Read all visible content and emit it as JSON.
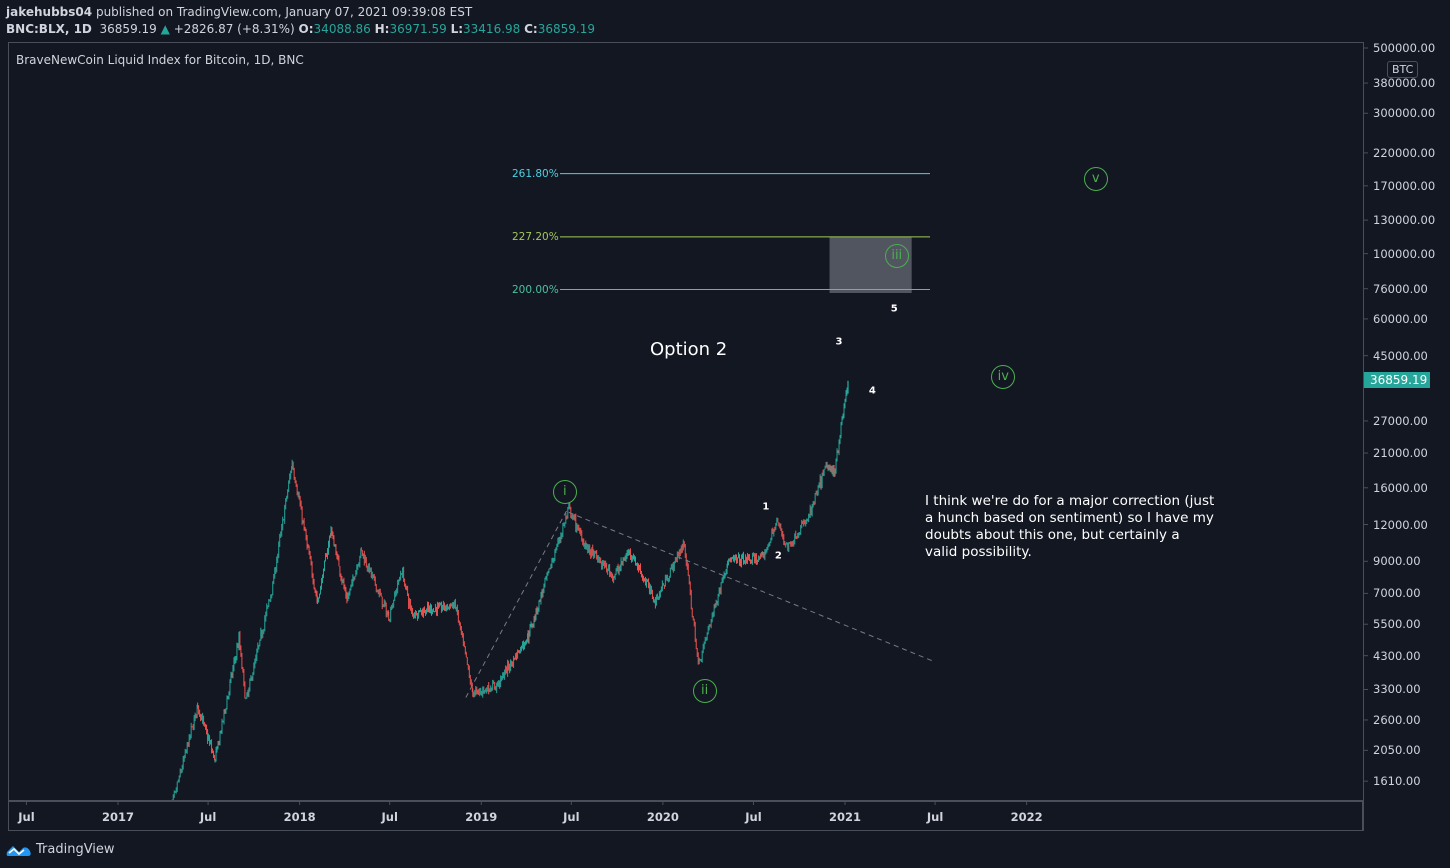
{
  "header": {
    "author": "jakehubbs04",
    "published": "published on TradingView.com, January 07, 2021 09:39:08 EST",
    "symbol": "BNC:BLX, 1D",
    "price": "36859.19",
    "change": "+2826.87 (+8.31%)",
    "o_label": "O:",
    "o": "34088.86",
    "h_label": "H:",
    "h": "36971.59",
    "l_label": "L:",
    "l": "33416.98",
    "c_label": "C:",
    "c": "36859.19"
  },
  "footer": {
    "brand": "TradingView"
  },
  "colors": {
    "bg": "#131722",
    "up": "#26a69a",
    "down": "#ef5350",
    "wave": "#4caf50"
  },
  "chart_data": {
    "type": "candlestick",
    "title": "BraveNewCoin Liquid Index for Bitcoin, 1D, BNC",
    "currency": "BTC",
    "yscale": "log",
    "ylim": [
      1450,
      560000
    ],
    "last_price": "36859.19",
    "y_ticks": [
      "500000.00",
      "380000.00",
      "300000.00",
      "220000.00",
      "170000.00",
      "130000.00",
      "100000.00",
      "76000.00",
      "60000.00",
      "45000.00",
      "27000.00",
      "21000.00",
      "16000.00",
      "12000.00",
      "9000.00",
      "7000.00",
      "5500.00",
      "4300.00",
      "3300.00",
      "2600.00",
      "2050.00",
      "1610.00"
    ],
    "x_ticks": [
      {
        "label": "Jul",
        "date": "2016-07-01"
      },
      {
        "label": "2017",
        "date": "2017-01-01"
      },
      {
        "label": "Jul",
        "date": "2017-07-01"
      },
      {
        "label": "2018",
        "date": "2018-01-01"
      },
      {
        "label": "Jul",
        "date": "2018-07-01"
      },
      {
        "label": "2019",
        "date": "2019-01-01"
      },
      {
        "label": "Jul",
        "date": "2019-07-01"
      },
      {
        "label": "2020",
        "date": "2020-01-01"
      },
      {
        "label": "Jul",
        "date": "2020-07-01"
      },
      {
        "label": "2021",
        "date": "2021-01-01"
      },
      {
        "label": "Jul",
        "date": "2021-07-01"
      },
      {
        "label": "2022",
        "date": "2022-01-01"
      }
    ],
    "price_path": [
      [
        "2017-04-10",
        1150
      ],
      [
        "2017-06-10",
        2900
      ],
      [
        "2017-07-15",
        1900
      ],
      [
        "2017-09-01",
        4900
      ],
      [
        "2017-09-15",
        3000
      ],
      [
        "2017-11-08",
        7500
      ],
      [
        "2017-12-17",
        19500
      ],
      [
        "2018-02-06",
        6500
      ],
      [
        "2018-03-05",
        11500
      ],
      [
        "2018-04-06",
        6600
      ],
      [
        "2018-05-05",
        9800
      ],
      [
        "2018-06-29",
        5800
      ],
      [
        "2018-07-25",
        8400
      ],
      [
        "2018-08-14",
        6000
      ],
      [
        "2018-11-10",
        6400
      ],
      [
        "2018-12-15",
        3200
      ],
      [
        "2019-02-01",
        3400
      ],
      [
        "2019-04-05",
        5000
      ],
      [
        "2019-06-26",
        13500
      ],
      [
        "2019-08-01",
        10000
      ],
      [
        "2019-09-25",
        8000
      ],
      [
        "2019-10-26",
        9800
      ],
      [
        "2019-12-17",
        6600
      ],
      [
        "2020-02-13",
        10400
      ],
      [
        "2020-03-12",
        4000
      ],
      [
        "2020-05-10",
        9000
      ],
      [
        "2020-07-20",
        9200
      ],
      [
        "2020-08-17",
        12300
      ],
      [
        "2020-09-08",
        10000
      ],
      [
        "2020-10-21",
        12800
      ],
      [
        "2020-11-24",
        19000
      ],
      [
        "2020-12-10",
        18000
      ],
      [
        "2021-01-07",
        36859
      ]
    ],
    "fib_levels": [
      {
        "label": "261.80%",
        "price": 187000,
        "color": "#4dd0e1"
      },
      {
        "label": "227.20%",
        "price": 114000,
        "color": "#a5c85a"
      },
      {
        "label": "200.00%",
        "price": 75500,
        "color": "#4cc0a0"
      }
    ],
    "target_zone": {
      "from_date": "2020-12-01",
      "to_date": "2021-05-15",
      "low": 73500,
      "high": 114000
    },
    "trendlines": [
      {
        "from": [
          "2018-12-01",
          3100
        ],
        "to": [
          "2019-06-26",
          13800
        ]
      },
      {
        "from": [
          "2019-06-26",
          13200
        ],
        "to": [
          "2021-06-30",
          4100
        ]
      }
    ],
    "waves": [
      {
        "label": "i",
        "date": "2019-06-18",
        "price": 15500
      },
      {
        "label": "ii",
        "date": "2020-03-25",
        "price": 3250
      },
      {
        "label": "iii",
        "date": "2021-04-15",
        "price": 98000
      },
      {
        "label": "iv",
        "date": "2021-11-15",
        "price": 38000
      },
      {
        "label": "v",
        "date": "2022-05-20",
        "price": 180000
      }
    ],
    "sub_waves": [
      {
        "label": "1",
        "date": "2020-07-26",
        "price": 13800
      },
      {
        "label": "2",
        "date": "2020-08-20",
        "price": 9400
      },
      {
        "label": "3",
        "date": "2020-12-20",
        "price": 50000
      },
      {
        "label": "4",
        "date": "2021-02-25",
        "price": 34000
      },
      {
        "label": "5",
        "date": "2021-04-10",
        "price": 65000
      }
    ],
    "annotations": {
      "option": "Option 2",
      "note": "I think we're do for a major correction (just a hunch based on sentiment) so I have my doubts about this one, but certainly a valid possibility."
    }
  }
}
